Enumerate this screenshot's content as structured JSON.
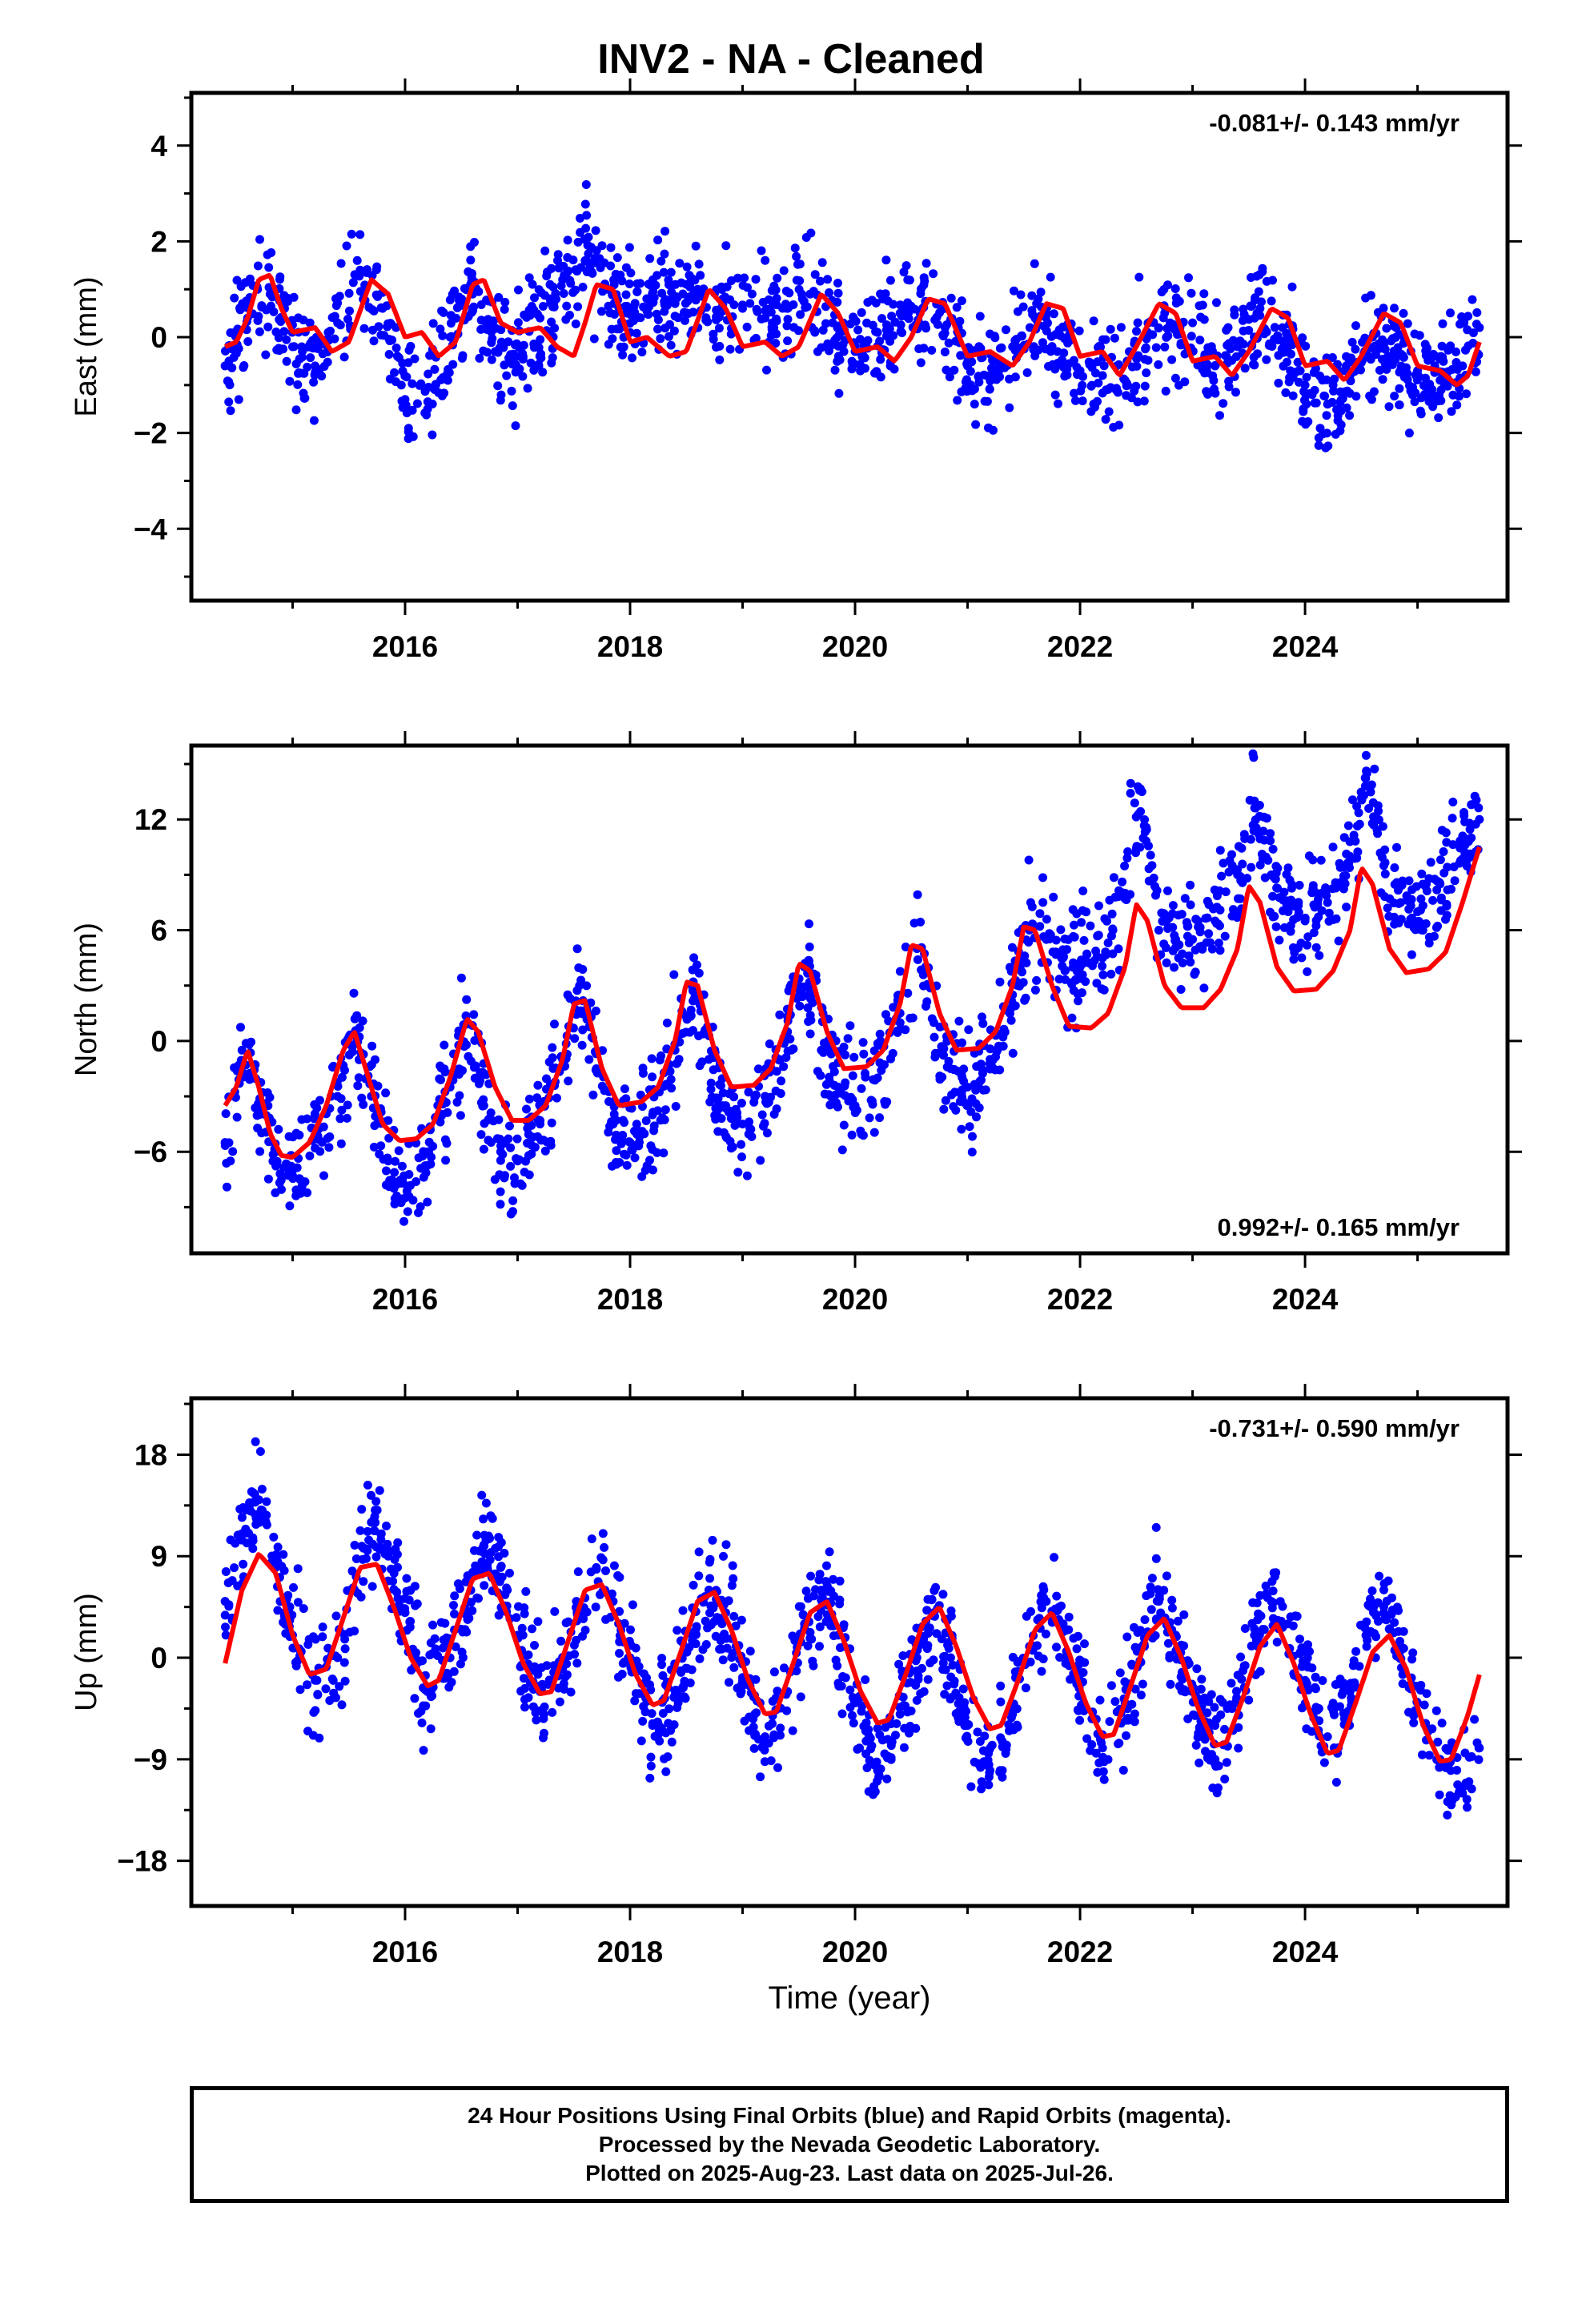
{
  "title": "INV2  - NA - Cleaned",
  "footer": {
    "line1": "24 Hour Positions Using Final Orbits (blue) and Rapid Orbits (magenta).",
    "line2": "Processed by the Nevada Geodetic Laboratory.",
    "line3": "Plotted on 2025-Aug-23. Last data on 2025-Jul-26."
  },
  "colors": {
    "observations": "#0000ff",
    "model": "#ff0000",
    "axis": "#000000"
  },
  "chart_data": [
    {
      "type": "scatter",
      "ylabel": "East (mm)",
      "xlabel": "",
      "rate": "-0.081+/- 0.143 mm/yr",
      "rate_position": "top-right",
      "xlim": [
        2014.1,
        2025.8
      ],
      "ylim": [
        -5.5,
        5.1
      ],
      "yticks": [
        -4,
        -2,
        0,
        2,
        4
      ],
      "xticks": [
        2016,
        2018,
        2020,
        2022,
        2024
      ],
      "xtick_labels": [
        "2016",
        "2018",
        "2020",
        "2022",
        "2024"
      ],
      "series": [
        {
          "kind": "observations",
          "x": [
            2014.4,
            2014.6,
            2014.8,
            2015.0,
            2015.2,
            2015.4,
            2015.6,
            2015.8,
            2016.0,
            2016.2,
            2016.4,
            2016.6,
            2016.8,
            2017.0,
            2017.2,
            2017.4,
            2017.6,
            2017.8,
            2018.0,
            2018.2,
            2018.4,
            2018.6,
            2018.8,
            2019.0,
            2019.2,
            2019.4,
            2019.6,
            2019.8,
            2020.0,
            2020.2,
            2020.4,
            2020.6,
            2020.8,
            2021.0,
            2021.2,
            2021.4,
            2021.6,
            2021.8,
            2022.0,
            2022.2,
            2022.4,
            2022.6,
            2022.8,
            2023.0,
            2023.2,
            2023.4,
            2023.6,
            2023.8,
            2024.0,
            2024.2,
            2024.4,
            2024.6,
            2024.8,
            2025.0,
            2025.2,
            2025.4,
            2025.55
          ],
          "y": [
            -0.6,
            0.4,
            0.9,
            -0.2,
            -0.6,
            0.3,
            1.4,
            0.6,
            -1.3,
            -1.5,
            0.0,
            0.9,
            -0.3,
            -0.4,
            0.4,
            1.2,
            1.6,
            1.0,
            0.6,
            0.8,
            0.7,
            1.0,
            0.5,
            0.6,
            0.4,
            0.6,
            0.9,
            0.3,
            -0.3,
            0.1,
            0.5,
            0.6,
            0.2,
            -0.6,
            -0.8,
            -0.2,
            0.4,
            -0.3,
            -0.7,
            -0.8,
            -0.9,
            0.1,
            0.3,
            0.3,
            -0.6,
            -0.2,
            0.6,
            0.2,
            -1.0,
            -1.4,
            -0.8,
            0.0,
            -0.4,
            -0.7,
            -0.9,
            -0.6,
            0.2
          ]
        },
        {
          "kind": "model",
          "x": [
            2014.4,
            2014.5,
            2014.6,
            2014.7,
            2014.8,
            2014.9,
            2015.0,
            2015.2,
            2015.35,
            2015.5,
            2015.7,
            2015.85,
            2016.0,
            2016.15,
            2016.3,
            2016.45,
            2016.6,
            2016.7,
            2016.85,
            2017.0,
            2017.2,
            2017.35,
            2017.5,
            2017.6,
            2017.7,
            2017.85,
            2018.0,
            2018.15,
            2018.35,
            2018.5,
            2018.7,
            2018.85,
            2019.0,
            2019.2,
            2019.35,
            2019.5,
            2019.7,
            2019.85,
            2020.0,
            2020.2,
            2020.35,
            2020.5,
            2020.65,
            2020.8,
            2021.0,
            2021.2,
            2021.4,
            2021.55,
            2021.7,
            2021.85,
            2022.0,
            2022.2,
            2022.35,
            2022.5,
            2022.7,
            2022.85,
            2023.0,
            2023.2,
            2023.35,
            2023.5,
            2023.7,
            2023.85,
            2024.0,
            2024.2,
            2024.35,
            2024.5,
            2024.7,
            2024.85,
            2025.0,
            2025.2,
            2025.35,
            2025.45,
            2025.55
          ],
          "y": [
            -0.2,
            -0.1,
            0.4,
            1.2,
            1.3,
            0.6,
            0.1,
            0.2,
            -0.3,
            -0.1,
            1.2,
            0.9,
            0.0,
            0.1,
            -0.4,
            -0.1,
            1.1,
            1.2,
            0.3,
            0.1,
            0.2,
            -0.2,
            -0.4,
            0.3,
            1.1,
            1.0,
            -0.1,
            0.0,
            -0.4,
            -0.3,
            1.0,
            0.6,
            -0.2,
            -0.1,
            -0.4,
            -0.2,
            0.9,
            0.5,
            -0.3,
            -0.2,
            -0.5,
            0.0,
            0.8,
            0.7,
            -0.4,
            -0.3,
            -0.6,
            -0.1,
            0.7,
            0.6,
            -0.4,
            -0.3,
            -0.8,
            -0.2,
            0.7,
            0.5,
            -0.5,
            -0.4,
            -0.8,
            -0.3,
            0.6,
            0.4,
            -0.6,
            -0.5,
            -0.9,
            -0.4,
            0.5,
            0.3,
            -0.6,
            -0.7,
            -1.0,
            -0.8,
            -0.1
          ]
        }
      ]
    },
    {
      "type": "scatter",
      "ylabel": "North (mm)",
      "xlabel": "",
      "rate": "0.992+/- 0.165 mm/yr",
      "rate_position": "bottom-right",
      "xlim": [
        2014.1,
        2025.8
      ],
      "ylim": [
        -11.5,
        16
      ],
      "yticks": [
        -6,
        0,
        6,
        12
      ],
      "xticks": [
        2016,
        2018,
        2020,
        2022,
        2024
      ],
      "xtick_labels": [
        "2016",
        "2018",
        "2020",
        "2022",
        "2024"
      ],
      "series": [
        {
          "kind": "observations",
          "x": [
            2014.4,
            2014.55,
            2014.7,
            2014.85,
            2015.0,
            2015.2,
            2015.4,
            2015.55,
            2015.7,
            2015.85,
            2016.0,
            2016.2,
            2016.4,
            2016.55,
            2016.7,
            2016.85,
            2017.0,
            2017.2,
            2017.4,
            2017.55,
            2017.7,
            2017.85,
            2018.0,
            2018.2,
            2018.4,
            2018.55,
            2018.7,
            2018.85,
            2019.0,
            2019.2,
            2019.4,
            2019.55,
            2019.7,
            2019.85,
            2020.0,
            2020.2,
            2020.4,
            2020.55,
            2020.7,
            2020.85,
            2021.0,
            2021.2,
            2021.4,
            2021.55,
            2021.7,
            2021.85,
            2022.0,
            2022.2,
            2022.4,
            2022.55,
            2022.7,
            2022.85,
            2023.0,
            2023.2,
            2023.4,
            2023.55,
            2023.7,
            2023.85,
            2024.0,
            2024.2,
            2024.4,
            2024.55,
            2024.7,
            2024.85,
            2025.0,
            2025.2,
            2025.4,
            2025.55
          ],
          "y": [
            -5.5,
            -0.5,
            -3.5,
            -6.0,
            -7.0,
            -5.8,
            -3.0,
            0.3,
            -3.0,
            -6.5,
            -8.5,
            -6.0,
            -2.5,
            1.0,
            -3.5,
            -6.0,
            -6.5,
            -4.5,
            -1.0,
            3.0,
            -1.5,
            -4.5,
            -5.5,
            -4.0,
            -0.5,
            3.0,
            -1.0,
            -3.5,
            -4.5,
            -3.0,
            0.5,
            4.0,
            -0.5,
            -2.5,
            -3.5,
            -2.0,
            1.5,
            5.0,
            1.0,
            -1.5,
            -2.5,
            -1.0,
            2.5,
            6.0,
            5.5,
            4.5,
            4.0,
            4.5,
            8.0,
            13.5,
            6.0,
            5.5,
            5.5,
            6.5,
            9.0,
            13.0,
            9.0,
            7.0,
            6.5,
            7.5,
            10.0,
            14.5,
            9.5,
            7.5,
            7.0,
            8.5,
            10.5,
            12.0
          ]
        },
        {
          "kind": "model",
          "x": [
            2014.4,
            2014.5,
            2014.6,
            2014.7,
            2014.8,
            2014.9,
            2015.0,
            2015.15,
            2015.3,
            2015.45,
            2015.55,
            2015.65,
            2015.8,
            2015.95,
            2016.1,
            2016.25,
            2016.4,
            2016.55,
            2016.65,
            2016.8,
            2016.95,
            2017.1,
            2017.25,
            2017.4,
            2017.5,
            2017.6,
            2017.75,
            2017.9,
            2018.1,
            2018.25,
            2018.4,
            2018.5,
            2018.6,
            2018.75,
            2018.9,
            2019.1,
            2019.25,
            2019.4,
            2019.5,
            2019.6,
            2019.75,
            2019.9,
            2020.1,
            2020.25,
            2020.4,
            2020.5,
            2020.6,
            2020.75,
            2020.9,
            2021.1,
            2021.25,
            2021.4,
            2021.5,
            2021.6,
            2021.75,
            2021.9,
            2022.1,
            2022.25,
            2022.4,
            2022.5,
            2022.6,
            2022.75,
            2022.9,
            2023.1,
            2023.25,
            2023.4,
            2023.5,
            2023.6,
            2023.75,
            2023.9,
            2024.1,
            2024.25,
            2024.4,
            2024.5,
            2024.6,
            2024.75,
            2024.9,
            2025.1,
            2025.25,
            2025.4,
            2025.55
          ],
          "y": [
            -3.5,
            -2.5,
            -0.5,
            -2.5,
            -5.0,
            -6.2,
            -6.3,
            -5.5,
            -3.5,
            -0.5,
            0.5,
            -1.5,
            -4.5,
            -5.4,
            -5.3,
            -4.5,
            -2.0,
            1.2,
            0.5,
            -2.5,
            -4.3,
            -4.3,
            -3.5,
            -1.0,
            2.0,
            2.2,
            -1.5,
            -3.5,
            -3.3,
            -2.5,
            0.0,
            3.2,
            3.0,
            -0.5,
            -2.5,
            -2.4,
            -1.5,
            1.0,
            4.2,
            3.8,
            0.5,
            -1.5,
            -1.4,
            -0.5,
            2.0,
            5.2,
            5.0,
            1.5,
            -0.5,
            -0.4,
            0.5,
            3.0,
            6.2,
            6.0,
            3.0,
            0.8,
            0.7,
            1.5,
            4.0,
            7.4,
            6.5,
            3.0,
            1.8,
            1.8,
            2.8,
            5.0,
            8.4,
            7.5,
            4.0,
            2.7,
            2.8,
            3.8,
            6.0,
            9.4,
            8.5,
            5.0,
            3.7,
            3.9,
            4.8,
            7.5,
            10.5
          ]
        }
      ]
    },
    {
      "type": "scatter",
      "ylabel": "Up (mm)",
      "xlabel": "Time (year)",
      "rate": "-0.731+/- 0.590 mm/yr",
      "rate_position": "top-right",
      "xlim": [
        2014.1,
        2025.8
      ],
      "ylim": [
        -22,
        23
      ],
      "yticks": [
        -18,
        -9,
        0,
        9,
        18
      ],
      "xticks": [
        2016,
        2018,
        2020,
        2022,
        2024
      ],
      "xtick_labels": [
        "2016",
        "2018",
        "2020",
        "2022",
        "2024"
      ],
      "series": [
        {
          "kind": "observations",
          "x": [
            2014.4,
            2014.55,
            2014.7,
            2014.85,
            2015.0,
            2015.2,
            2015.4,
            2015.55,
            2015.7,
            2015.85,
            2016.0,
            2016.2,
            2016.4,
            2016.55,
            2016.7,
            2016.85,
            2017.0,
            2017.2,
            2017.4,
            2017.55,
            2017.7,
            2017.85,
            2018.0,
            2018.2,
            2018.4,
            2018.55,
            2018.7,
            2018.85,
            2019.0,
            2019.2,
            2019.4,
            2019.55,
            2019.7,
            2019.85,
            2020.0,
            2020.2,
            2020.4,
            2020.55,
            2020.7,
            2020.85,
            2021.0,
            2021.2,
            2021.4,
            2021.55,
            2021.7,
            2021.85,
            2022.0,
            2022.2,
            2022.4,
            2022.55,
            2022.7,
            2022.85,
            2023.0,
            2023.2,
            2023.4,
            2023.55,
            2023.7,
            2023.85,
            2024.0,
            2024.2,
            2024.4,
            2024.55,
            2024.7,
            2024.85,
            2025.0,
            2025.2,
            2025.4,
            2025.55
          ],
          "y": [
            5.0,
            11.0,
            14.0,
            8.0,
            2.0,
            -2.0,
            0.0,
            6.0,
            12.0,
            9.0,
            4.0,
            -3.0,
            0.0,
            5.0,
            10.0,
            8.0,
            2.0,
            -3.0,
            -1.0,
            4.0,
            8.0,
            5.0,
            0.0,
            -6.0,
            -3.0,
            2.0,
            6.0,
            4.0,
            -2.0,
            -7.0,
            -3.0,
            3.0,
            6.0,
            2.0,
            -4.0,
            -10.0,
            -5.0,
            0.0,
            4.0,
            0.0,
            -6.0,
            -10.0,
            -5.0,
            1.0,
            5.0,
            3.0,
            -2.0,
            -8.0,
            -4.0,
            1.0,
            5.0,
            2.0,
            -3.0,
            -9.0,
            -4.0,
            2.0,
            5.0,
            3.0,
            -2.0,
            -7.0,
            -3.0,
            2.0,
            4.0,
            1.0,
            -4.0,
            -9.0,
            -12.0,
            -8.0
          ]
        },
        {
          "kind": "model",
          "x": [
            2014.4,
            2014.55,
            2014.7,
            2014.85,
            2015.0,
            2015.15,
            2015.3,
            2015.45,
            2015.6,
            2015.75,
            2015.9,
            2016.05,
            2016.2,
            2016.3,
            2016.45,
            2016.6,
            2016.75,
            2016.9,
            2017.05,
            2017.2,
            2017.3,
            2017.45,
            2017.6,
            2017.75,
            2017.9,
            2018.05,
            2018.2,
            2018.3,
            2018.45,
            2018.6,
            2018.75,
            2018.9,
            2019.05,
            2019.2,
            2019.3,
            2019.45,
            2019.6,
            2019.75,
            2019.9,
            2020.05,
            2020.2,
            2020.3,
            2020.45,
            2020.6,
            2020.75,
            2020.9,
            2021.05,
            2021.2,
            2021.3,
            2021.45,
            2021.6,
            2021.75,
            2021.9,
            2022.05,
            2022.2,
            2022.3,
            2022.45,
            2022.6,
            2022.75,
            2022.9,
            2023.05,
            2023.2,
            2023.3,
            2023.45,
            2023.6,
            2023.75,
            2023.9,
            2024.05,
            2024.2,
            2024.3,
            2024.45,
            2024.6,
            2024.75,
            2024.9,
            2025.05,
            2025.2,
            2025.3,
            2025.45,
            2025.55
          ],
          "y": [
            -0.5,
            6.0,
            9.2,
            7.5,
            2.0,
            -1.5,
            -1.0,
            3.5,
            8.0,
            8.3,
            4.5,
            0.0,
            -2.5,
            -2.0,
            2.5,
            7.0,
            7.5,
            4.0,
            -0.5,
            -3.2,
            -3.0,
            1.5,
            6.0,
            6.5,
            3.0,
            -1.5,
            -4.2,
            -3.8,
            0.5,
            5.0,
            5.8,
            2.5,
            -2.0,
            -5.0,
            -4.8,
            -0.5,
            4.0,
            5.0,
            1.5,
            -3.0,
            -5.8,
            -5.5,
            -1.5,
            3.0,
            4.5,
            1.0,
            -3.5,
            -6.3,
            -6.0,
            -2.0,
            2.5,
            4.0,
            0.5,
            -4.0,
            -7.0,
            -6.8,
            -2.5,
            2.0,
            3.5,
            0.0,
            -4.5,
            -7.8,
            -7.5,
            -3.5,
            1.0,
            3.0,
            -0.5,
            -5.0,
            -8.5,
            -8.2,
            -4.0,
            0.5,
            2.0,
            -1.0,
            -6.0,
            -9.2,
            -9.0,
            -5.0,
            -1.5
          ]
        }
      ]
    }
  ]
}
